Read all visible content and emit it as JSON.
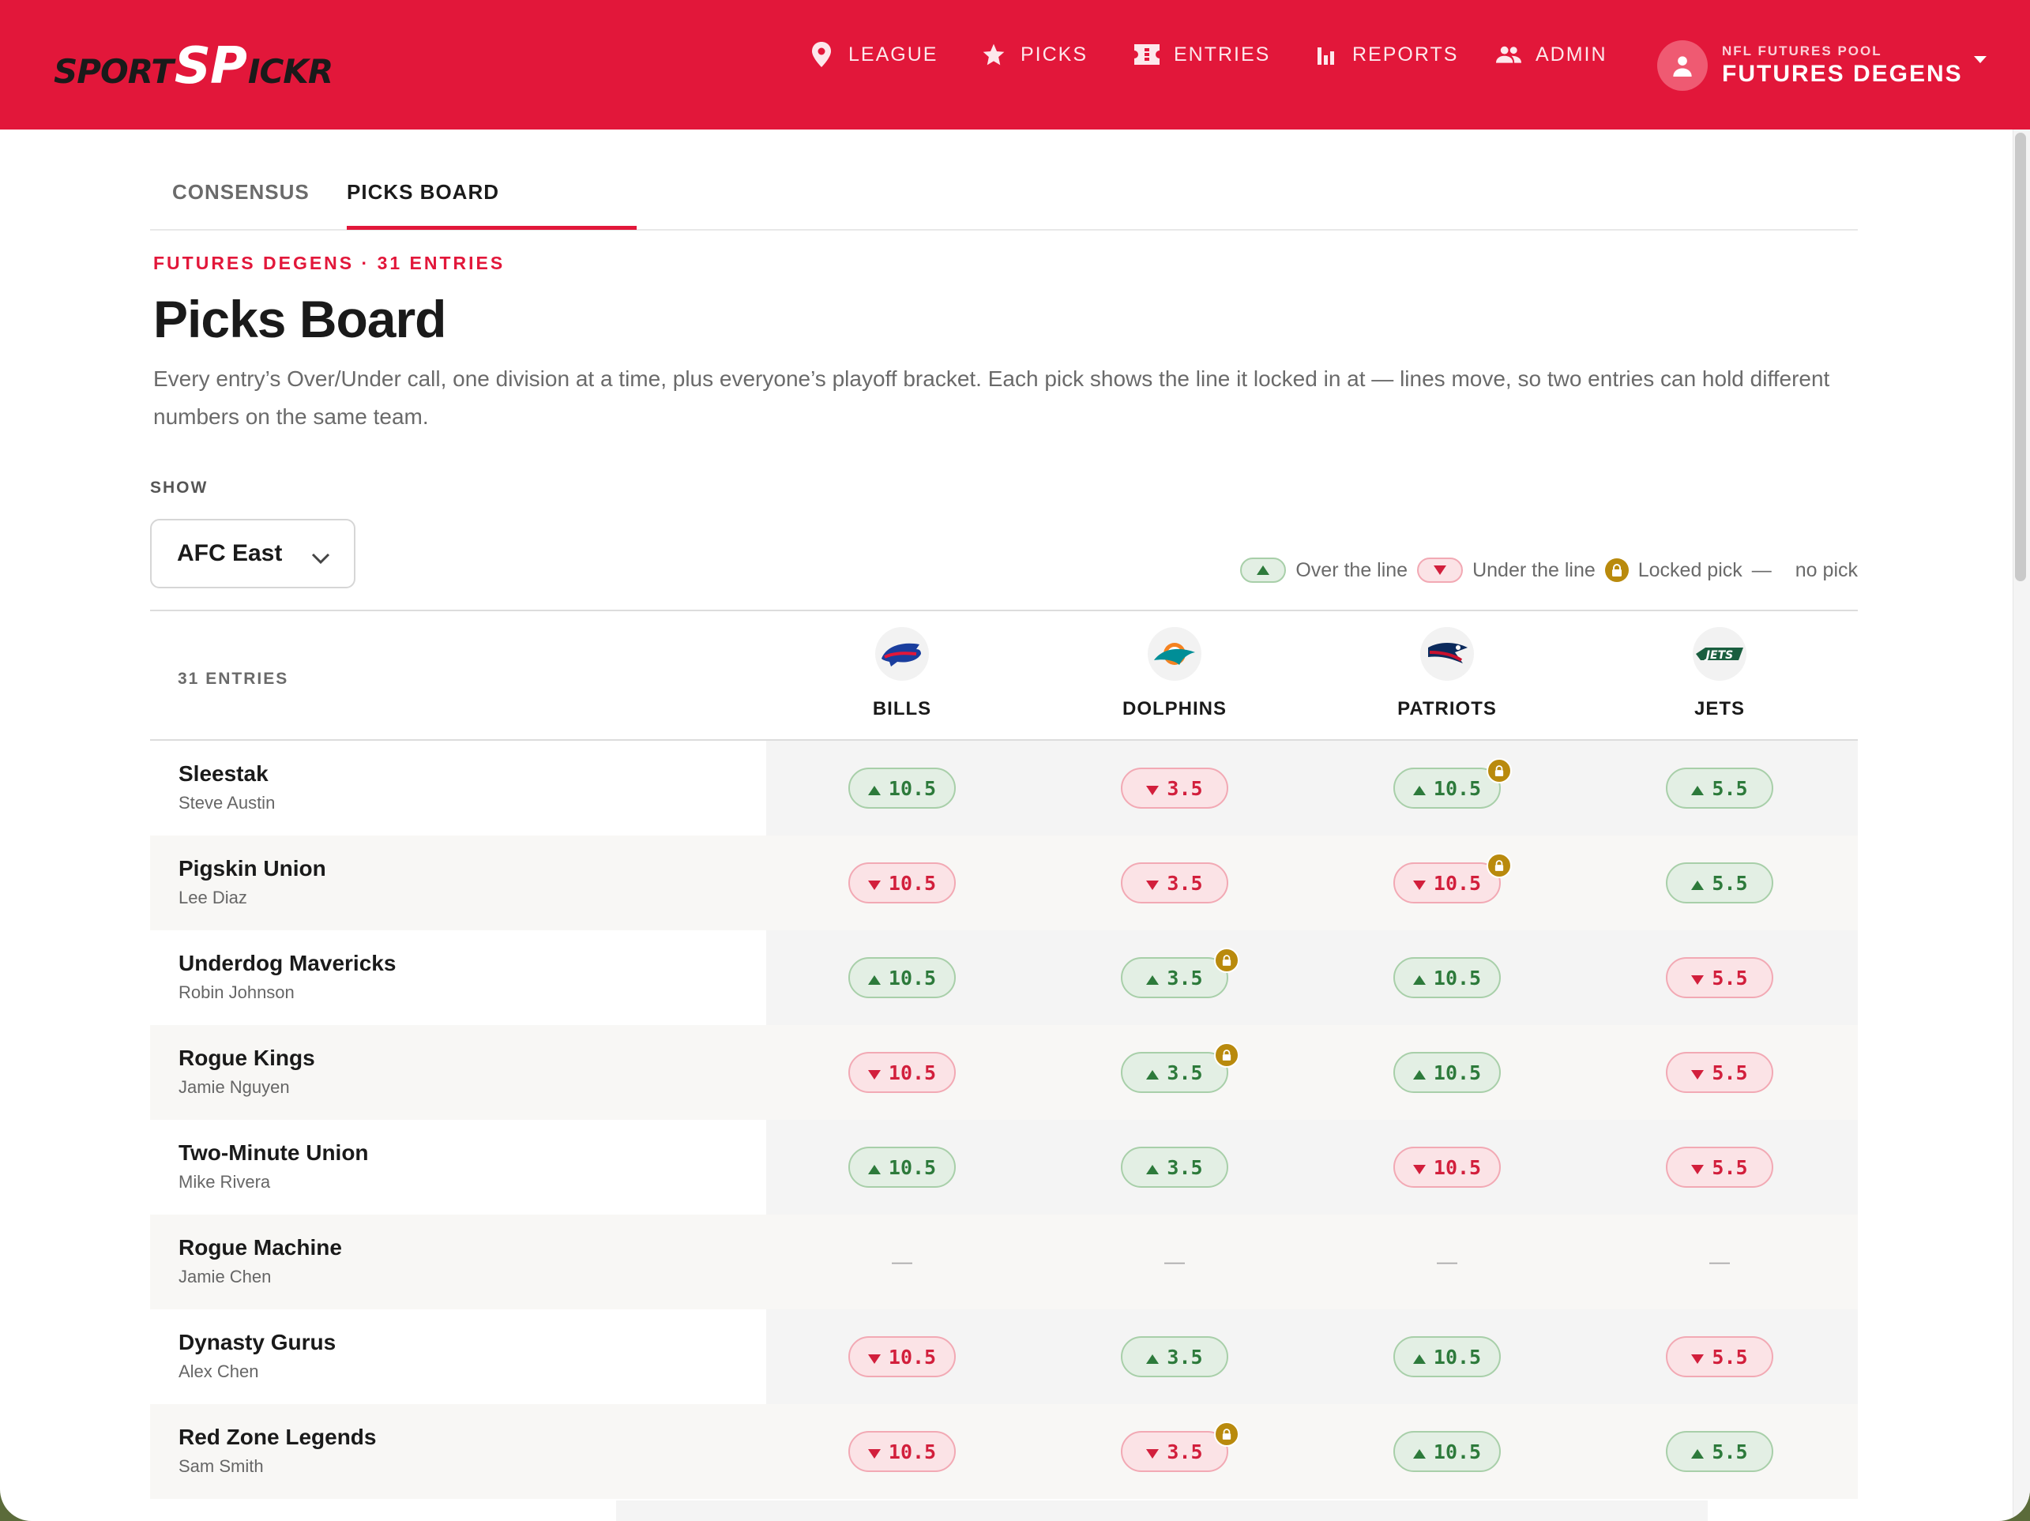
{
  "brand": {
    "part1": "SPORT",
    "part2": "SP",
    "part3": "ICKR"
  },
  "nav": [
    {
      "label": "LEAGUE",
      "icon": "location-pin-icon"
    },
    {
      "label": "PICKS",
      "icon": "star-icon"
    },
    {
      "label": "ENTRIES",
      "icon": "ticket-icon"
    },
    {
      "label": "REPORTS",
      "icon": "bar-chart-icon"
    },
    {
      "label": "ADMIN",
      "icon": "people-icon"
    }
  ],
  "pool": {
    "subtitle": "NFL FUTURES POOL",
    "name": "FUTURES DEGENS"
  },
  "tabs": [
    {
      "label": "CONSENSUS"
    },
    {
      "label": "PICKS BOARD",
      "active": true
    }
  ],
  "header": {
    "eyebrow": "FUTURES DEGENS · 31 ENTRIES",
    "title": "Picks Board",
    "description": "Every entry’s Over/Under call, one division at a time, plus everyone’s playoff bracket. Each pick shows the line it locked in at — lines move, so two entries can hold different numbers on the same team."
  },
  "filter": {
    "label": "SHOW",
    "value": "AFC East"
  },
  "legend": {
    "over": "Over the line",
    "under": "Under the line",
    "locked": "Locked pick",
    "dash": "—",
    "nopick": "no pick"
  },
  "table": {
    "entries_label": "31 ENTRIES",
    "teams": [
      "BILLS",
      "DOLPHINS",
      "PATRIOTS",
      "JETS"
    ],
    "rows": [
      {
        "entry": "Sleestak",
        "owner": "Steve Austin",
        "picks": [
          {
            "dir": "over",
            "line": "10.5"
          },
          {
            "dir": "under",
            "line": "3.5"
          },
          {
            "dir": "over",
            "line": "10.5",
            "locked": true
          },
          {
            "dir": "over",
            "line": "5.5"
          }
        ]
      },
      {
        "entry": "Pigskin Union",
        "owner": "Lee Diaz",
        "picks": [
          {
            "dir": "under",
            "line": "10.5"
          },
          {
            "dir": "under",
            "line": "3.5"
          },
          {
            "dir": "under",
            "line": "10.5",
            "locked": true
          },
          {
            "dir": "over",
            "line": "5.5"
          }
        ]
      },
      {
        "entry": "Underdog Mavericks",
        "owner": "Robin Johnson",
        "picks": [
          {
            "dir": "over",
            "line": "10.5"
          },
          {
            "dir": "over",
            "line": "3.5",
            "locked": true
          },
          {
            "dir": "over",
            "line": "10.5"
          },
          {
            "dir": "under",
            "line": "5.5"
          }
        ]
      },
      {
        "entry": "Rogue Kings",
        "owner": "Jamie Nguyen",
        "picks": [
          {
            "dir": "under",
            "line": "10.5"
          },
          {
            "dir": "over",
            "line": "3.5",
            "locked": true
          },
          {
            "dir": "over",
            "line": "10.5"
          },
          {
            "dir": "under",
            "line": "5.5"
          }
        ]
      },
      {
        "entry": "Two-Minute Union",
        "owner": "Mike Rivera",
        "picks": [
          {
            "dir": "over",
            "line": "10.5"
          },
          {
            "dir": "over",
            "line": "3.5"
          },
          {
            "dir": "under",
            "line": "10.5"
          },
          {
            "dir": "under",
            "line": "5.5"
          }
        ]
      },
      {
        "entry": "Rogue Machine",
        "owner": "Jamie Chen",
        "picks": [
          {
            "dir": "none",
            "line": "—"
          },
          {
            "dir": "none",
            "line": "—"
          },
          {
            "dir": "none",
            "line": "—"
          },
          {
            "dir": "none",
            "line": "—"
          }
        ]
      },
      {
        "entry": "Dynasty Gurus",
        "owner": "Alex Chen",
        "picks": [
          {
            "dir": "under",
            "line": "10.5"
          },
          {
            "dir": "over",
            "line": "3.5"
          },
          {
            "dir": "over",
            "line": "10.5"
          },
          {
            "dir": "under",
            "line": "5.5"
          }
        ]
      },
      {
        "entry": "Red Zone Legends",
        "owner": "Sam Smith",
        "picks": [
          {
            "dir": "under",
            "line": "10.5"
          },
          {
            "dir": "under",
            "line": "3.5",
            "locked": true
          },
          {
            "dir": "over",
            "line": "10.5"
          },
          {
            "dir": "over",
            "line": "5.5"
          }
        ]
      }
    ]
  },
  "colors": {
    "brand": "#e2173a",
    "over": "#2d7a3b",
    "under": "#d21f3c",
    "lock": "#b98a0d"
  }
}
